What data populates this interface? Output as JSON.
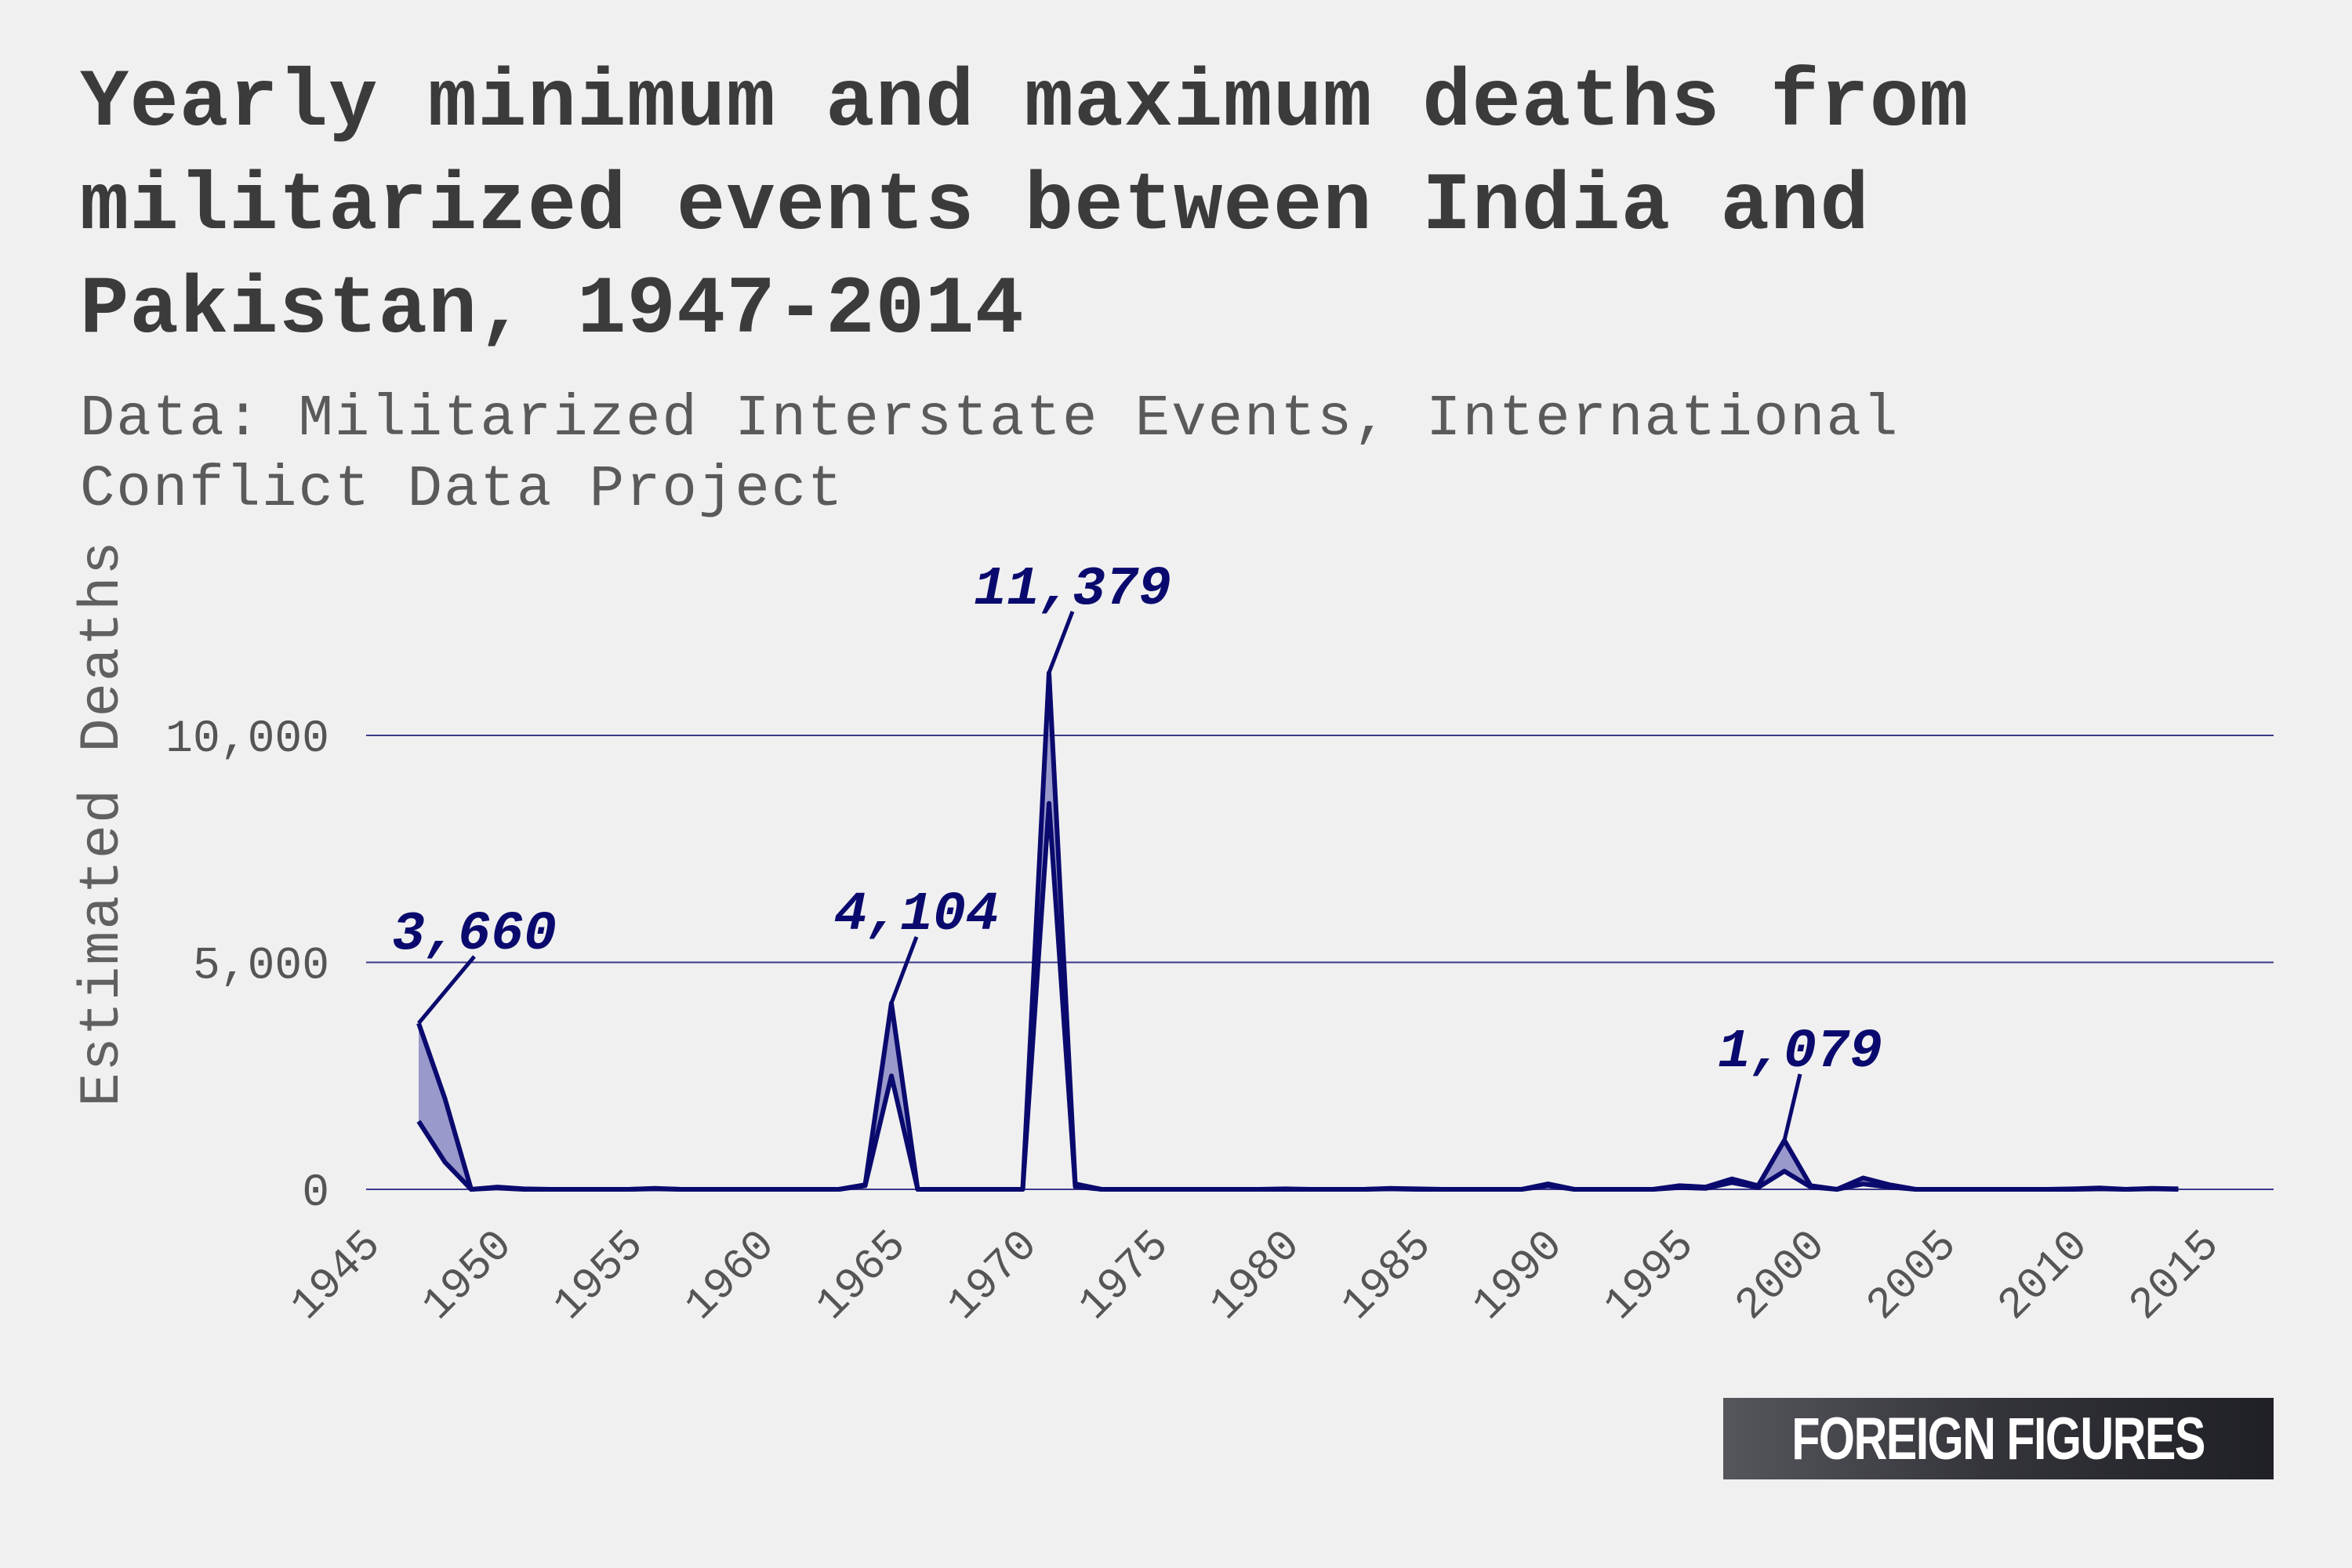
{
  "header": {
    "title": "Yearly minimum and maximum deaths from militarized events between India and Pakistan, 1947-2014",
    "subtitle": "Data: Militarized Interstate Events, International Conflict Data Project"
  },
  "logo": {
    "text": "FOREIGN FIGURES"
  },
  "colors": {
    "background": "#f0f0f0",
    "line": "#0a0a6e",
    "fill": "#8a8ac4",
    "grid": "#3a3a8a",
    "title": "#3b3b3b"
  },
  "chart_data": {
    "type": "area",
    "title": "Yearly minimum and maximum deaths from militarized events between India and Pakistan, 1947-2014",
    "xlabel": "",
    "ylabel": "Estimated Deaths",
    "xlim": [
      1945,
      2017
    ],
    "ylim": [
      -600,
      13300
    ],
    "x_ticks": [
      1945,
      1950,
      1955,
      1960,
      1965,
      1970,
      1975,
      1980,
      1985,
      1990,
      1995,
      2000,
      2005,
      2010,
      2015
    ],
    "y_ticks": [
      0,
      5000,
      10000
    ],
    "y_tick_labels": [
      "0",
      "5,000",
      "10,000"
    ],
    "grid": "horizontal",
    "x": [
      1947,
      1948,
      1949,
      1950,
      1951,
      1952,
      1953,
      1954,
      1955,
      1956,
      1957,
      1958,
      1959,
      1960,
      1961,
      1962,
      1963,
      1964,
      1965,
      1966,
      1967,
      1968,
      1969,
      1970,
      1971,
      1972,
      1973,
      1974,
      1975,
      1976,
      1977,
      1978,
      1979,
      1980,
      1981,
      1982,
      1983,
      1984,
      1985,
      1986,
      1987,
      1988,
      1989,
      1990,
      1991,
      1992,
      1993,
      1994,
      1995,
      1996,
      1997,
      1998,
      1999,
      2000,
      2001,
      2002,
      2003,
      2004,
      2005,
      2006,
      2007,
      2008,
      2009,
      2010,
      2011,
      2012,
      2013,
      2014
    ],
    "series": [
      {
        "name": "Maximum",
        "values": [
          3660,
          2000,
          0,
          50,
          10,
          0,
          0,
          0,
          0,
          20,
          0,
          0,
          0,
          0,
          0,
          0,
          0,
          100,
          4104,
          0,
          0,
          0,
          0,
          0,
          11379,
          120,
          0,
          0,
          0,
          0,
          0,
          0,
          0,
          10,
          0,
          0,
          0,
          20,
          10,
          0,
          0,
          0,
          0,
          120,
          0,
          0,
          0,
          0,
          80,
          50,
          230,
          80,
          1079,
          80,
          0,
          250,
          100,
          0,
          0,
          0,
          0,
          0,
          0,
          10,
          30,
          0,
          20,
          10
        ]
      },
      {
        "name": "Minimum",
        "values": [
          1500,
          600,
          0,
          30,
          0,
          0,
          0,
          0,
          0,
          10,
          0,
          0,
          0,
          0,
          0,
          0,
          0,
          80,
          2500,
          0,
          0,
          0,
          0,
          0,
          8500,
          60,
          0,
          0,
          0,
          0,
          0,
          0,
          0,
          0,
          0,
          0,
          0,
          10,
          0,
          0,
          0,
          0,
          0,
          80,
          0,
          0,
          0,
          0,
          40,
          20,
          150,
          40,
          400,
          50,
          0,
          120,
          50,
          0,
          0,
          0,
          0,
          0,
          0,
          0,
          10,
          0,
          10,
          0
        ]
      }
    ],
    "annotations": [
      {
        "text": "3,660",
        "year": 1947,
        "value": 3660
      },
      {
        "text": "4,104",
        "year": 1965,
        "value": 4104
      },
      {
        "text": "11,379",
        "year": 1971,
        "value": 11379
      },
      {
        "text": "1,079",
        "year": 1999,
        "value": 1079
      }
    ]
  }
}
